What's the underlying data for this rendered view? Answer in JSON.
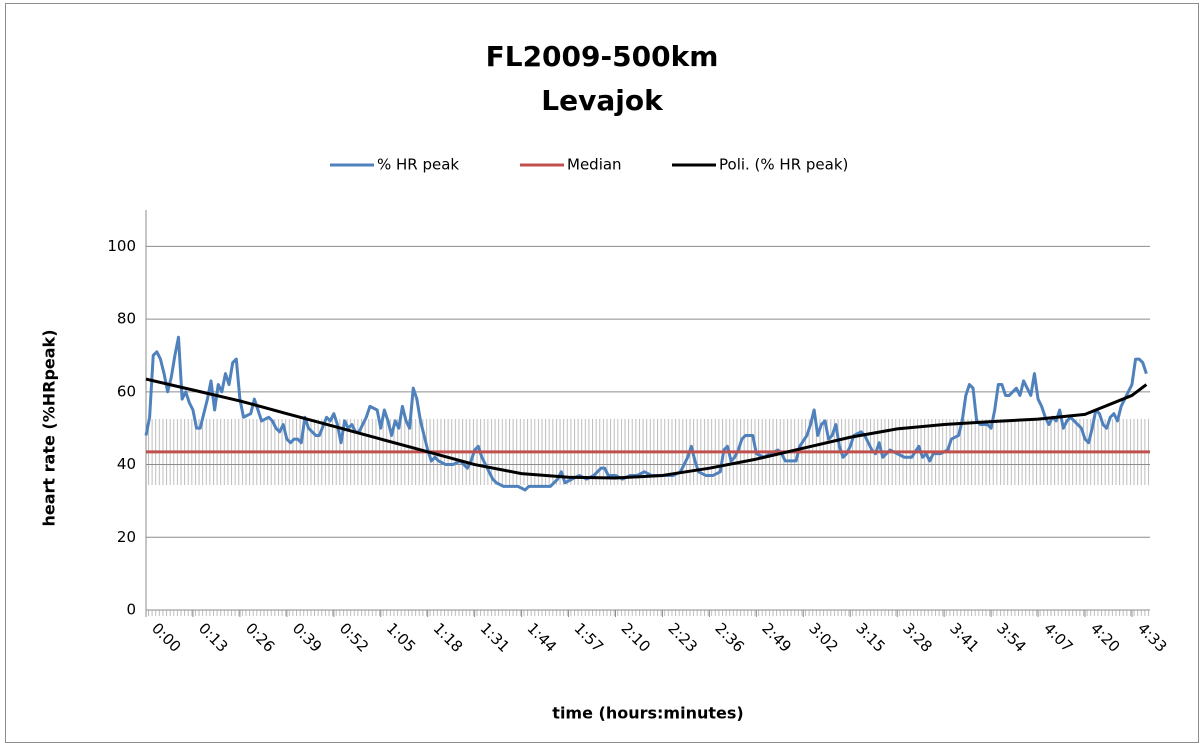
{
  "chart_data": {
    "type": "line",
    "title": "FL2009-500km",
    "subtitle": "Levajok",
    "x_label": "time (hours:minutes)",
    "y_label": "heart rate (%HRpeak)",
    "xlim": [
      0,
      278
    ],
    "ylim": [
      0,
      110
    ],
    "xticks": [
      {
        "value": 0,
        "label": "0:00"
      },
      {
        "value": 13,
        "label": "0:13"
      },
      {
        "value": 26,
        "label": "0:26"
      },
      {
        "value": 39,
        "label": "0:39"
      },
      {
        "value": 52,
        "label": "0:52"
      },
      {
        "value": 65,
        "label": "1:05"
      },
      {
        "value": 78,
        "label": "1:18"
      },
      {
        "value": 91,
        "label": "1:31"
      },
      {
        "value": 104,
        "label": "1:44"
      },
      {
        "value": 117,
        "label": "1:57"
      },
      {
        "value": 130,
        "label": "2:10"
      },
      {
        "value": 143,
        "label": "2:23"
      },
      {
        "value": 156,
        "label": "2:36"
      },
      {
        "value": 169,
        "label": "2:49"
      },
      {
        "value": 182,
        "label": "3:02"
      },
      {
        "value": 195,
        "label": "3:15"
      },
      {
        "value": 208,
        "label": "3:28"
      },
      {
        "value": 221,
        "label": "3:41"
      },
      {
        "value": 234,
        "label": "3:54"
      },
      {
        "value": 247,
        "label": "4:07"
      },
      {
        "value": 260,
        "label": "4:20"
      },
      {
        "value": 273,
        "label": "4:33"
      }
    ],
    "yticks": [
      0,
      20,
      40,
      60,
      80,
      100
    ],
    "grid": true,
    "legend": "top",
    "series": [
      {
        "name": "% HR peak",
        "color": "#4f81bd",
        "x": [
          0,
          1,
          2,
          3,
          4,
          5,
          6,
          7,
          8,
          9,
          10,
          11,
          12,
          13,
          14,
          15,
          17,
          18,
          19,
          20,
          21,
          22,
          23,
          24,
          25,
          26,
          27,
          29,
          30,
          31,
          32,
          34,
          35,
          36,
          37,
          38,
          39,
          40,
          41,
          42,
          43,
          44,
          45,
          47,
          48,
          50,
          51,
          52,
          53,
          54,
          55,
          56,
          57,
          58,
          59,
          61,
          62,
          64,
          65,
          66,
          67,
          68,
          69,
          70,
          71,
          72,
          73,
          74,
          75,
          76,
          77,
          78,
          79,
          80,
          81,
          83,
          85,
          87,
          88,
          89,
          90,
          91,
          92,
          93,
          95,
          96,
          97,
          99,
          101,
          103,
          105,
          106,
          108,
          110,
          112,
          114,
          115,
          116,
          118,
          120,
          122,
          124,
          126,
          127,
          128,
          130,
          132,
          134,
          136,
          138,
          140,
          142,
          144,
          146,
          148,
          150,
          151,
          152,
          153,
          155,
          157,
          159,
          160,
          161,
          162,
          163,
          164,
          165,
          166,
          168,
          169,
          171,
          173,
          175,
          176,
          177,
          179,
          180,
          181,
          183,
          184,
          185,
          186,
          187,
          188,
          189,
          190,
          191,
          192,
          193,
          194,
          195,
          196,
          198,
          199,
          200,
          201,
          202,
          203,
          204,
          206,
          208,
          210,
          212,
          214,
          215,
          216,
          217,
          218,
          220,
          222,
          223,
          225,
          226,
          227,
          228,
          229,
          230,
          231,
          233,
          234,
          235,
          236,
          237,
          238,
          239,
          240,
          241,
          242,
          243,
          244,
          245,
          246,
          247,
          248,
          249,
          250,
          251,
          252,
          253,
          254,
          255,
          256,
          257,
          258,
          259,
          260,
          261,
          262,
          263,
          264,
          265,
          266,
          267,
          268,
          269,
          270,
          271,
          272,
          273,
          274,
          275,
          276,
          277
        ],
        "values": [
          48,
          53,
          70,
          71,
          69,
          65,
          60,
          64,
          70,
          75,
          58,
          60,
          57,
          55,
          50,
          50,
          58,
          63,
          55,
          62,
          60,
          65,
          62,
          68,
          69,
          58,
          53,
          54,
          58,
          55,
          52,
          53,
          52,
          50,
          49,
          51,
          47,
          46,
          47,
          47,
          46,
          53,
          50,
          48,
          48,
          53,
          52,
          54,
          51,
          46,
          52,
          50,
          51,
          49,
          49,
          53,
          56,
          55,
          50,
          55,
          52,
          48,
          52,
          50,
          56,
          52,
          50,
          61,
          58,
          52,
          48,
          44,
          41,
          42,
          41,
          40,
          40,
          41,
          40,
          39,
          41,
          44,
          45,
          42,
          38,
          36,
          35,
          34,
          34,
          34,
          33,
          34,
          34,
          34,
          34,
          36,
          38,
          35,
          36,
          37,
          36,
          37,
          39,
          39,
          37,
          37,
          36,
          37,
          37,
          38,
          37,
          37,
          37,
          37,
          38,
          42,
          45,
          41,
          38,
          37,
          37,
          38,
          44,
          45,
          41,
          42,
          44,
          47,
          48,
          48,
          43,
          42,
          43,
          44,
          43,
          41,
          41,
          41,
          45,
          48,
          51,
          55,
          48,
          51,
          52,
          47,
          48,
          51,
          45,
          42,
          43,
          45,
          48,
          49,
          48,
          46,
          44,
          43,
          46,
          42,
          44,
          43,
          42,
          42,
          45,
          42,
          43,
          41,
          43,
          43,
          44,
          47,
          48,
          52,
          59,
          62,
          61,
          52,
          51,
          51,
          50,
          55,
          62,
          62,
          59,
          59,
          60,
          61,
          59,
          63,
          61,
          59,
          65,
          58,
          56,
          53,
          51,
          53,
          52,
          55,
          50,
          52,
          53,
          52,
          51,
          50,
          47,
          46,
          50,
          55,
          54,
          51,
          50,
          53,
          54,
          52,
          56,
          58,
          60,
          62,
          69,
          69,
          68,
          65
        ]
      },
      {
        "name": "Median",
        "color": "#c0504d",
        "x": [
          0,
          278
        ],
        "values": [
          43.5,
          43.5
        ]
      },
      {
        "name": "Poli. (% HR peak)",
        "color": "#000000",
        "x": [
          0,
          13,
          26,
          39,
          52,
          65,
          78,
          91,
          104,
          117,
          130,
          143,
          156,
          169,
          182,
          195,
          208,
          221,
          234,
          247,
          260,
          273,
          277
        ],
        "values": [
          63.5,
          60.5,
          57.5,
          54,
          50.5,
          47,
          43.5,
          40,
          37.5,
          36.5,
          36.3,
          37,
          39,
          41.5,
          44.5,
          47.5,
          49.8,
          51,
          51.8,
          52.5,
          53.8,
          59,
          62
        ]
      }
    ]
  }
}
